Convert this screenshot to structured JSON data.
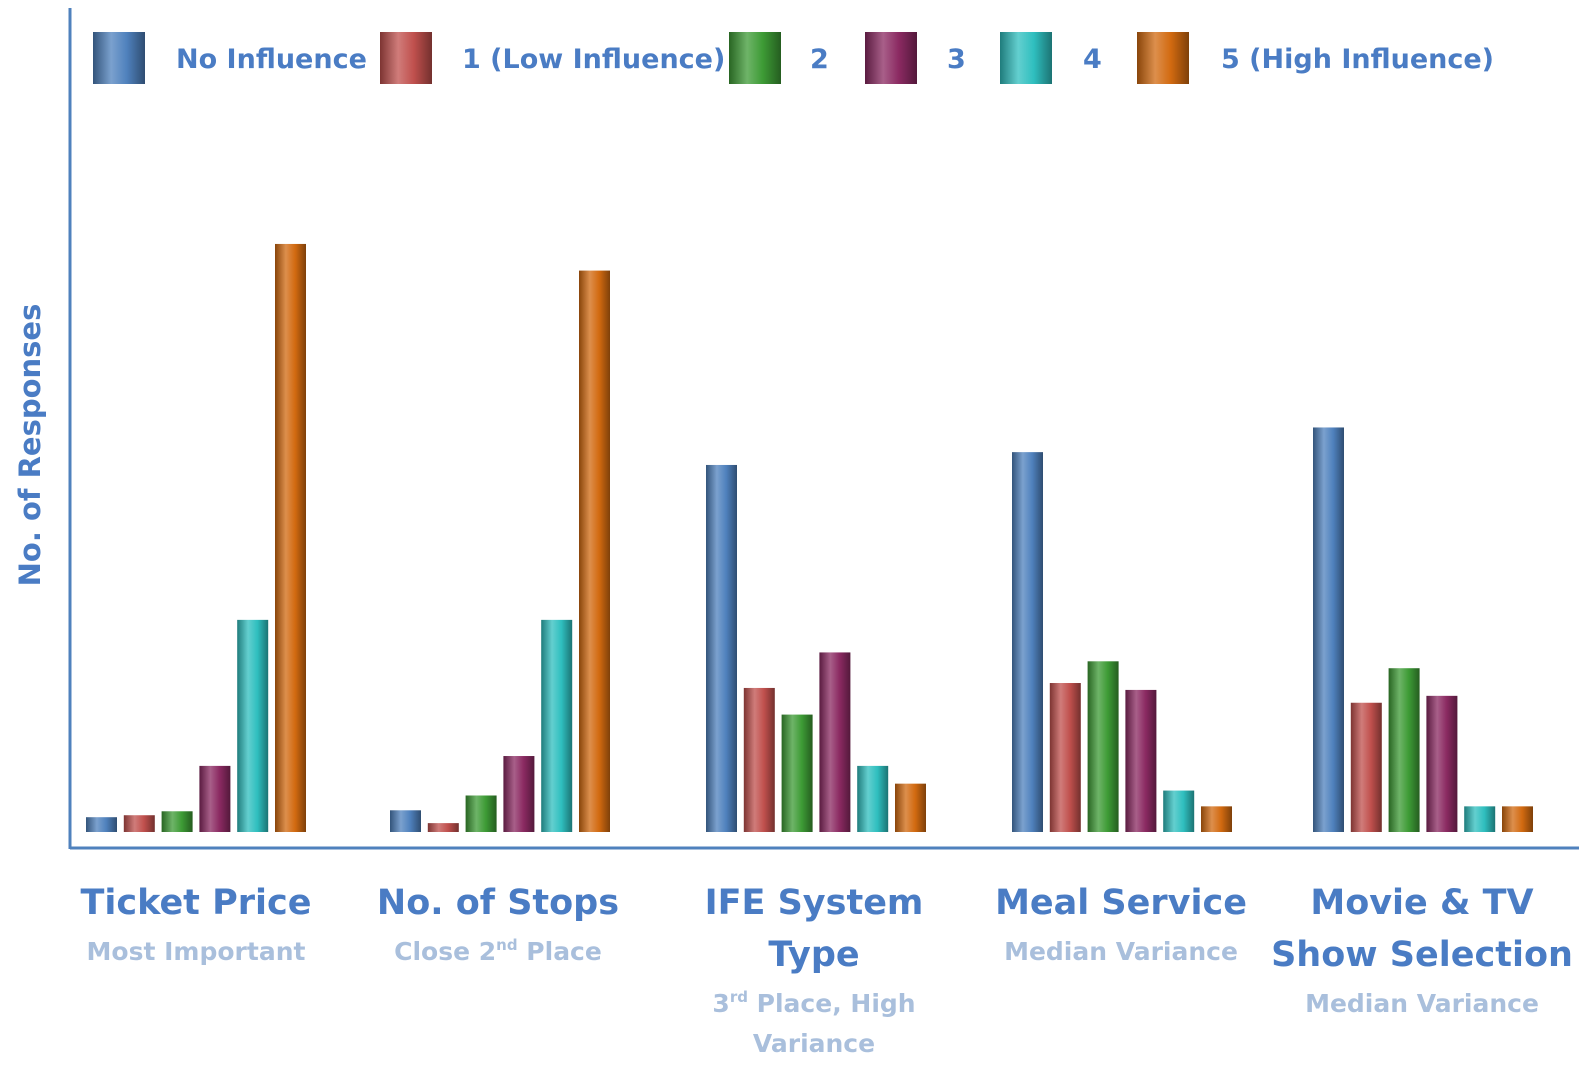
{
  "chart_data": {
    "type": "bar",
    "ylabel": "No. of Responses",
    "xlabel": "",
    "ylim": [
      0,
      60
    ],
    "grid": false,
    "legend_position": "top",
    "categories": [
      {
        "name": "Ticket Price",
        "name_lines": [
          "Ticket Price"
        ],
        "subtitle_lines": [
          {
            "base": "Most Important",
            "sup": "",
            "rest": ""
          }
        ]
      },
      {
        "name": "No. of Stops",
        "name_lines": [
          "No. of Stops"
        ],
        "subtitle_lines": [
          {
            "base": "Close 2",
            "sup": "nd",
            "rest": " Place"
          }
        ]
      },
      {
        "name": "IFE System Type",
        "name_lines": [
          "IFE System",
          "Type"
        ],
        "subtitle_lines": [
          {
            "base": "3",
            "sup": "rd",
            "rest": " Place, High"
          },
          {
            "base": "Variance",
            "sup": "",
            "rest": ""
          }
        ]
      },
      {
        "name": "Meal Service",
        "name_lines": [
          "Meal Service"
        ],
        "subtitle_lines": [
          {
            "base": "Median Variance",
            "sup": "",
            "rest": ""
          }
        ]
      },
      {
        "name": "Movie & TV Show Selection",
        "name_lines": [
          "Movie & TV",
          "Show Selection"
        ],
        "subtitle_lines": [
          {
            "base": "Median Variance",
            "sup": "",
            "rest": ""
          }
        ]
      }
    ],
    "series": [
      {
        "name": "No Influence",
        "color": "#4f81bd",
        "values": [
          1.5,
          2.2,
          37.2,
          38.5,
          41
        ]
      },
      {
        "name": "1 (Low Influence)",
        "color": "#c0504d",
        "values": [
          1.7,
          0.9,
          14.6,
          15.1,
          13.1
        ]
      },
      {
        "name": "2",
        "color": "#3d9b35",
        "values": [
          2.1,
          3.7,
          11.9,
          17.3,
          16.6
        ]
      },
      {
        "name": "3",
        "color": "#8b2a62",
        "values": [
          6.7,
          7.7,
          18.2,
          14.4,
          13.8
        ]
      },
      {
        "name": "4",
        "color": "#2fbfbf",
        "values": [
          21.5,
          21.5,
          6.7,
          4.2,
          2.6
        ]
      },
      {
        "name": "5 (High Influence)",
        "color": "#d26a10",
        "values": [
          59.6,
          56.9,
          4.9,
          2.6,
          2.6
        ]
      }
    ]
  }
}
